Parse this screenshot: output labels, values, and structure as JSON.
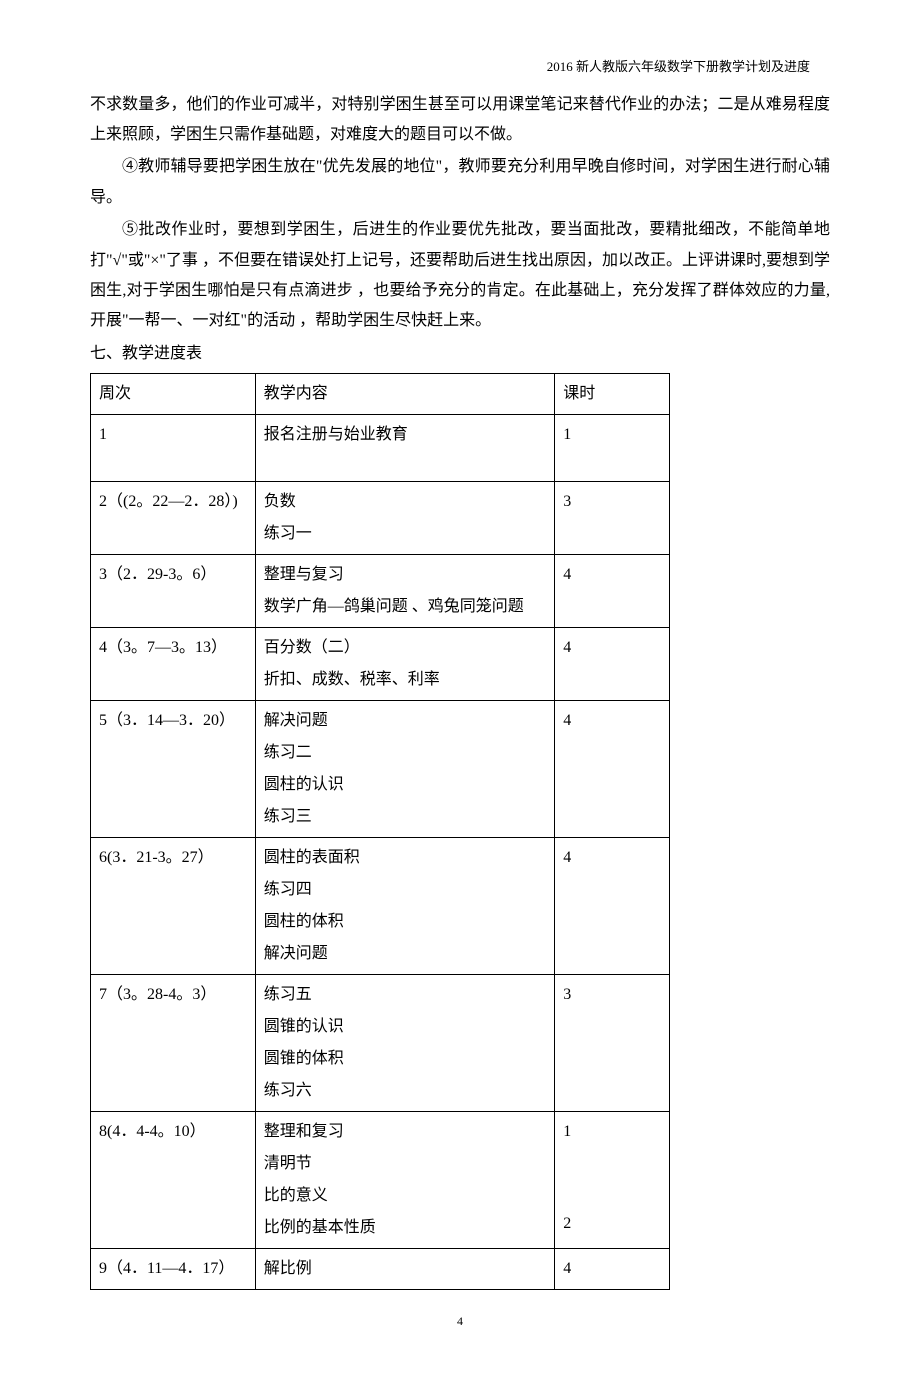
{
  "header": {
    "title": "2016 新人教版六年级数学下册教学计划及进度"
  },
  "paragraphs": {
    "p1": "不求数量多，他们的作业可减半，对特别学困生甚至可以用课堂笔记来替代作业的办法；二是从难易程度上来照顾，学困生只需作基础题，对难度大的题目可以不做。",
    "p2": "④教师辅导要把学困生放在\"优先发展的地位\"，教师要充分利用早晚自修时间，对学困生进行耐心辅导。",
    "p3": "⑤批改作业时，要想到学困生，后进生的作业要优先批改，要当面批改，要精批细改，不能简单地打\"√\"或\"×\"了事 ，不但要在错误处打上记号，还要帮助后进生找出原因，加以改正。上评讲课时,要想到学困生,对于学困生哪怕是只有点滴进步 ，也要给予充分的肯定。在此基础上，充分发挥了群体效应的力量,开展\"一帮一、一对红\"的活动 ，帮助学困生尽快赶上来。",
    "section": "七、教学进度表"
  },
  "table": {
    "headers": {
      "week": "周次",
      "content": "教学内容",
      "hours": "课时"
    },
    "rows": [
      {
        "week": "1",
        "content": "报名注册与始业教育",
        "hours": "1"
      },
      {
        "week": "2（(2。22—2．28）)",
        "content": "负数\n练习一",
        "hours": "3"
      },
      {
        "week": "3（2．29-3。6）",
        "content": "整理与复习\n数学广角—鸽巢问题 、鸡兔同笼问题",
        "hours": "4"
      },
      {
        "week": "4（3。7—3。13）",
        "content": "百分数（二）\n折扣、成数、税率、利率",
        "hours": "4"
      },
      {
        "week": "5（3．14—3．20）",
        "content": "解决问题\n练习二\n圆柱的认识\n练习三",
        "hours": "4"
      },
      {
        "week": "6(3．21-3。27）",
        "content": "圆柱的表面积\n练习四\n圆柱的体积\n解决问题",
        "hours": "4"
      },
      {
        "week": "7（3。28-4。3）",
        "content": "练习五\n圆锥的认识\n圆锥的体积\n练习六",
        "hours": "3"
      },
      {
        "week": "8(4．4-4。10）",
        "content": "整理和复习\n清明节\n比的意义\n比例的基本性质",
        "hours": "1",
        "hours2": "2"
      },
      {
        "week": "9（4．11—4．17）",
        "content": "解比例",
        "hours": "4"
      }
    ]
  },
  "footer": {
    "pageNumber": "4"
  }
}
